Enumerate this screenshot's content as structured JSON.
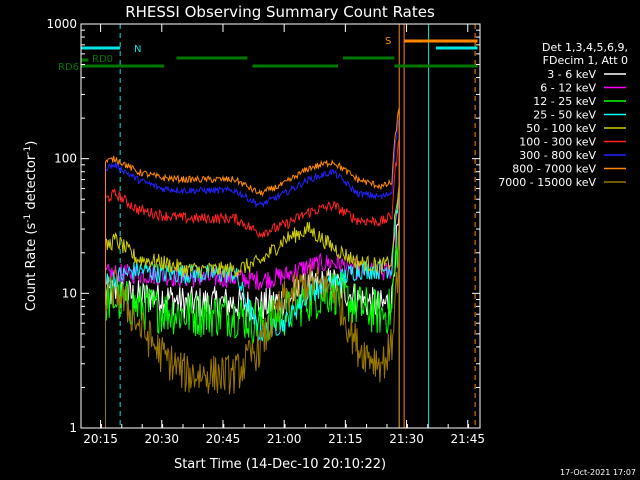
{
  "chart_data": {
    "type": "line",
    "title": "RHESSI Observing Summary Count Rates",
    "xlabel": "Start Time (14-Dec-10 20:10:22)",
    "ylabel_prefix": "Count Rate (s",
    "ylabel_sup": "-1",
    "ylabel_mid": " detector",
    "ylabel_sup2": "-1",
    "ylabel_suffix": ")",
    "yscale": "log",
    "ylim": [
      1,
      1000
    ],
    "xlim_minutes": [
      20.17,
      21.8
    ],
    "xticks": [
      {
        "label": "20:15",
        "minutes": 20.25
      },
      {
        "label": "20:30",
        "minutes": 20.5
      },
      {
        "label": "20:45",
        "minutes": 20.75
      },
      {
        "label": "21:00",
        "minutes": 21.0
      },
      {
        "label": "21:15",
        "minutes": 21.25
      },
      {
        "label": "21:30",
        "minutes": 21.5
      },
      {
        "label": "21:45",
        "minutes": 21.75
      }
    ],
    "yticks": [
      {
        "label": "1",
        "value": 1
      },
      {
        "label": "10",
        "value": 10
      },
      {
        "label": "100",
        "value": 100
      },
      {
        "label": "1000",
        "value": 1000
      }
    ],
    "legend_header": [
      "Det 1,3,4,5,6,9,",
      "FDecim 1, Att 0"
    ],
    "timestamp": "17-Oct-2021 17:07",
    "annotations": {
      "rd0": "RD0",
      "rd6": "RD6",
      "n": "N",
      "s": "S"
    },
    "colors": {
      "night": "#00e5e5",
      "saa": "#ff8800",
      "rd": "#007700"
    },
    "series": [
      {
        "name": "3 - 6 keV",
        "color": "#ffffff",
        "anchors": [
          [
            20.27,
            10
          ],
          [
            20.31,
            10
          ],
          [
            20.4,
            9.5
          ],
          [
            20.5,
            9.5
          ],
          [
            20.6,
            8.5
          ],
          [
            20.8,
            8.5
          ],
          [
            20.9,
            8
          ],
          [
            21.0,
            9
          ],
          [
            21.1,
            11
          ],
          [
            21.2,
            12
          ],
          [
            21.3,
            9
          ],
          [
            21.4,
            8
          ],
          [
            21.47,
            10
          ]
        ],
        "noise": 0.25
      },
      {
        "name": "6 - 12 keV",
        "color": "#ff00ff",
        "anchors": [
          [
            20.27,
            14
          ],
          [
            20.31,
            14
          ],
          [
            20.4,
            14
          ],
          [
            20.5,
            13.5
          ],
          [
            20.6,
            13
          ],
          [
            20.8,
            13
          ],
          [
            20.9,
            12.5
          ],
          [
            21.0,
            13.5
          ],
          [
            21.1,
            16
          ],
          [
            21.2,
            17
          ],
          [
            21.3,
            15
          ],
          [
            21.4,
            14
          ],
          [
            21.47,
            16
          ]
        ],
        "noise": 0.15
      },
      {
        "name": "12 - 25 keV",
        "color": "#00ff00",
        "anchors": [
          [
            20.27,
            9
          ],
          [
            20.31,
            9
          ],
          [
            20.4,
            8
          ],
          [
            20.5,
            7.5
          ],
          [
            20.6,
            7
          ],
          [
            20.8,
            7
          ],
          [
            20.9,
            6
          ],
          [
            21.0,
            7
          ],
          [
            21.1,
            9
          ],
          [
            21.2,
            10.5
          ],
          [
            21.3,
            8
          ],
          [
            21.4,
            7
          ],
          [
            21.47,
            8
          ]
        ],
        "noise": 0.35
      },
      {
        "name": "25 - 50 keV",
        "color": "#00ffff",
        "anchors": [
          [
            20.27,
            12
          ],
          [
            20.31,
            13
          ],
          [
            20.4,
            15
          ],
          [
            20.5,
            14
          ],
          [
            20.6,
            14
          ],
          [
            20.8,
            14
          ],
          [
            20.9,
            5
          ],
          [
            21.0,
            6
          ],
          [
            21.1,
            10
          ],
          [
            21.2,
            12
          ],
          [
            21.3,
            15
          ],
          [
            21.4,
            15
          ],
          [
            21.47,
            16
          ]
        ],
        "noise": 0.15
      },
      {
        "name": "50 - 100 keV",
        "color": "#cccc00",
        "anchors": [
          [
            20.27,
            22
          ],
          [
            20.31,
            25
          ],
          [
            20.4,
            18
          ],
          [
            20.5,
            17
          ],
          [
            20.6,
            15
          ],
          [
            20.8,
            15
          ],
          [
            20.9,
            17
          ],
          [
            21.0,
            25
          ],
          [
            21.1,
            30
          ],
          [
            21.2,
            22
          ],
          [
            21.3,
            17
          ],
          [
            21.4,
            16
          ],
          [
            21.47,
            18
          ]
        ],
        "noise": 0.12
      },
      {
        "name": "100 - 300 keV",
        "color": "#ff2222",
        "anchors": [
          [
            20.27,
            50
          ],
          [
            20.31,
            55
          ],
          [
            20.4,
            42
          ],
          [
            20.5,
            38
          ],
          [
            20.6,
            36
          ],
          [
            20.8,
            36
          ],
          [
            20.9,
            28
          ],
          [
            21.0,
            32
          ],
          [
            21.1,
            40
          ],
          [
            21.2,
            45
          ],
          [
            21.3,
            35
          ],
          [
            21.4,
            34
          ],
          [
            21.47,
            40
          ]
        ],
        "noise": 0.08
      },
      {
        "name": "300 - 800 keV",
        "color": "#2222ff",
        "anchors": [
          [
            20.27,
            85
          ],
          [
            20.31,
            90
          ],
          [
            20.4,
            70
          ],
          [
            20.5,
            60
          ],
          [
            20.6,
            58
          ],
          [
            20.8,
            58
          ],
          [
            20.9,
            45
          ],
          [
            21.0,
            55
          ],
          [
            21.1,
            70
          ],
          [
            21.2,
            80
          ],
          [
            21.3,
            55
          ],
          [
            21.4,
            52
          ],
          [
            21.47,
            60
          ]
        ],
        "noise": 0.05
      },
      {
        "name": "800 - 7000 keV",
        "color": "#ff8800",
        "anchors": [
          [
            20.27,
            95
          ],
          [
            20.31,
            100
          ],
          [
            20.4,
            80
          ],
          [
            20.5,
            72
          ],
          [
            20.6,
            70
          ],
          [
            20.8,
            70
          ],
          [
            20.9,
            55
          ],
          [
            21.0,
            65
          ],
          [
            21.1,
            85
          ],
          [
            21.2,
            95
          ],
          [
            21.3,
            70
          ],
          [
            21.4,
            62
          ],
          [
            21.47,
            70
          ]
        ],
        "noise": 0.05
      },
      {
        "name": "7000 - 15000 keV",
        "color": "#997700",
        "anchors": [
          [
            20.27,
            9
          ],
          [
            20.31,
            11
          ],
          [
            20.4,
            6
          ],
          [
            20.5,
            3.5
          ],
          [
            20.6,
            2.5
          ],
          [
            20.8,
            2.5
          ],
          [
            20.9,
            4
          ],
          [
            21.0,
            9
          ],
          [
            21.1,
            12
          ],
          [
            21.2,
            11
          ],
          [
            21.3,
            4
          ],
          [
            21.4,
            3
          ],
          [
            21.47,
            5
          ]
        ],
        "noise": 0.3
      }
    ]
  }
}
